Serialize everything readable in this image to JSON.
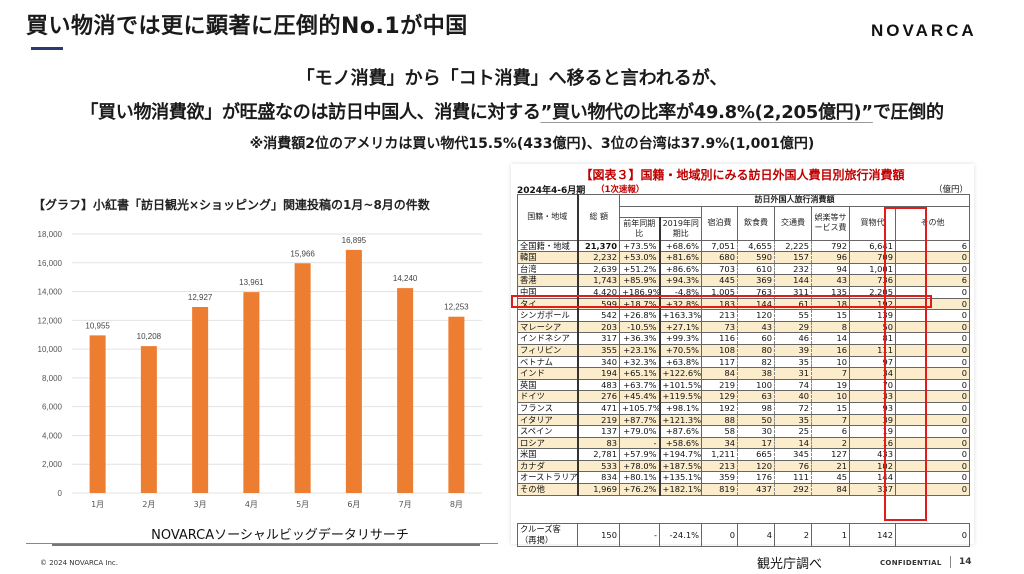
{
  "header": {
    "title": "買い物消では更に顕著に圧倒的No.1が中国",
    "logo": "NOVARCA",
    "accent_color": "#2c3a6b"
  },
  "lead": {
    "line1": "「モノ消費」から「コト消費」へ移ると言われるが、",
    "line2_a": "「買い物消費欲」が旺盛なのは訪日中国人、消費に対する",
    "line2_b": "”買い物代の比率が49.8%(2,205億円)”",
    "line2_c": "で圧倒的",
    "line3": "※消費額2位のアメリカは買い物代15.5%(433億円)、3位の台湾は37.9%(1,001億円)"
  },
  "chart_data": {
    "type": "bar",
    "title": "【グラフ】小紅書「訪日観光×ショッピング」関連投稿の1月~8月の件数",
    "categories": [
      "1月",
      "2月",
      "3月",
      "4月",
      "5月",
      "6月",
      "7月",
      "8月"
    ],
    "values": [
      10955,
      10208,
      12927,
      13961,
      15966,
      16895,
      14240,
      12253
    ],
    "value_labels": [
      "10,955",
      "10,208",
      "12,927",
      "13,961",
      "15,966",
      "16,895",
      "14,240",
      "12,253"
    ],
    "xlabel": "",
    "ylabel": "",
    "ylim": [
      0,
      18000
    ],
    "yticks": [
      0,
      2000,
      4000,
      6000,
      8000,
      10000,
      12000,
      14000,
      16000,
      18000
    ],
    "ytick_labels": [
      "0",
      "2,000",
      "4,000",
      "6,000",
      "8,000",
      "10,000",
      "12,000",
      "14,000",
      "16,000",
      "18,000"
    ],
    "grid": true,
    "bar_color": "#ed7d31",
    "source": "NOVARCAソーシャルビッグデータリサーチ"
  },
  "table": {
    "heading": "【図表３】国籍・地域別にみる訪日外国人費目別旅行消費額",
    "period": "2024年4-6月期",
    "prelim": "（1次速報）",
    "unit": "（億円）",
    "headers": {
      "region": "国籍・地域",
      "total": "総 額",
      "group": "訪日外国人旅行消費額",
      "yoy": "前年同期比",
      "vs2019": "2019年同期比",
      "lodging": "宿泊費",
      "food": "飲食費",
      "transport": "交通費",
      "entertainment": "娯楽等サービス費",
      "shopping": "買物代",
      "other": "その他"
    },
    "rows": [
      {
        "name": "全国籍・地域",
        "total": "21,370",
        "yoy": "+73.5%",
        "vs2019": "+68.6%",
        "lodging": "7,051",
        "food": "4,655",
        "transport": "2,225",
        "ent": "792",
        "shop": "6,641",
        "other": "6"
      },
      {
        "name": "韓国",
        "total": "2,232",
        "yoy": "+53.0%",
        "vs2019": "+81.6%",
        "lodging": "680",
        "food": "590",
        "transport": "157",
        "ent": "96",
        "shop": "709",
        "other": "0"
      },
      {
        "name": "台湾",
        "total": "2,639",
        "yoy": "+51.2%",
        "vs2019": "+86.6%",
        "lodging": "703",
        "food": "610",
        "transport": "232",
        "ent": "94",
        "shop": "1,001",
        "other": "0"
      },
      {
        "name": "香港",
        "total": "1,743",
        "yoy": "+85.9%",
        "vs2019": "+94.3%",
        "lodging": "445",
        "food": "369",
        "transport": "144",
        "ent": "43",
        "shop": "736",
        "other": "6"
      },
      {
        "name": "中国",
        "total": "4,420",
        "yoy": "+186.9%",
        "vs2019": "-4.8%",
        "lodging": "1,005",
        "food": "763",
        "transport": "311",
        "ent": "135",
        "shop": "2,205",
        "other": "0"
      },
      {
        "name": "タイ",
        "total": "599",
        "yoy": "+18.7%",
        "vs2019": "+32.8%",
        "lodging": "183",
        "food": "144",
        "transport": "61",
        "ent": "18",
        "shop": "192",
        "other": "0"
      },
      {
        "name": "シンガポール",
        "total": "542",
        "yoy": "+26.8%",
        "vs2019": "+163.3%",
        "lodging": "213",
        "food": "120",
        "transport": "55",
        "ent": "15",
        "shop": "139",
        "other": "0"
      },
      {
        "name": "マレーシア",
        "total": "203",
        "yoy": "-10.5%",
        "vs2019": "+27.1%",
        "lodging": "73",
        "food": "43",
        "transport": "29",
        "ent": "8",
        "shop": "50",
        "other": "0"
      },
      {
        "name": "インドネシア",
        "total": "317",
        "yoy": "+36.3%",
        "vs2019": "+99.3%",
        "lodging": "116",
        "food": "60",
        "transport": "46",
        "ent": "14",
        "shop": "81",
        "other": "0"
      },
      {
        "name": "フィリピン",
        "total": "355",
        "yoy": "+23.1%",
        "vs2019": "+70.5%",
        "lodging": "108",
        "food": "80",
        "transport": "39",
        "ent": "16",
        "shop": "111",
        "other": "0"
      },
      {
        "name": "ベトナム",
        "total": "340",
        "yoy": "+32.3%",
        "vs2019": "+63.8%",
        "lodging": "117",
        "food": "82",
        "transport": "35",
        "ent": "10",
        "shop": "97",
        "other": "0"
      },
      {
        "name": "インド",
        "total": "194",
        "yoy": "+65.1%",
        "vs2019": "+122.6%",
        "lodging": "84",
        "food": "38",
        "transport": "31",
        "ent": "7",
        "shop": "34",
        "other": "0"
      },
      {
        "name": "英国",
        "total": "483",
        "yoy": "+63.7%",
        "vs2019": "+101.5%",
        "lodging": "219",
        "food": "100",
        "transport": "74",
        "ent": "19",
        "shop": "70",
        "other": "0"
      },
      {
        "name": "ドイツ",
        "total": "276",
        "yoy": "+45.4%",
        "vs2019": "+119.5%",
        "lodging": "129",
        "food": "63",
        "transport": "40",
        "ent": "10",
        "shop": "33",
        "other": "0"
      },
      {
        "name": "フランス",
        "total": "471",
        "yoy": "+105.7%",
        "vs2019": "+98.1%",
        "lodging": "192",
        "food": "98",
        "transport": "72",
        "ent": "15",
        "shop": "93",
        "other": "0"
      },
      {
        "name": "イタリア",
        "total": "219",
        "yoy": "+87.7%",
        "vs2019": "+121.3%",
        "lodging": "88",
        "food": "50",
        "transport": "35",
        "ent": "7",
        "shop": "39",
        "other": "0"
      },
      {
        "name": "スペイン",
        "total": "137",
        "yoy": "+79.0%",
        "vs2019": "+87.6%",
        "lodging": "58",
        "food": "30",
        "transport": "25",
        "ent": "6",
        "shop": "19",
        "other": "0"
      },
      {
        "name": "ロシア",
        "total": "83",
        "yoy": "-",
        "vs2019": "+58.6%",
        "lodging": "34",
        "food": "17",
        "transport": "14",
        "ent": "2",
        "shop": "16",
        "other": "0"
      },
      {
        "name": "米国",
        "total": "2,781",
        "yoy": "+57.9%",
        "vs2019": "+194.7%",
        "lodging": "1,211",
        "food": "665",
        "transport": "345",
        "ent": "127",
        "shop": "433",
        "other": "0"
      },
      {
        "name": "カナダ",
        "total": "533",
        "yoy": "+78.0%",
        "vs2019": "+187.5%",
        "lodging": "213",
        "food": "120",
        "transport": "76",
        "ent": "21",
        "shop": "102",
        "other": "0"
      },
      {
        "name": "オーストラリア",
        "total": "834",
        "yoy": "+80.1%",
        "vs2019": "+135.1%",
        "lodging": "359",
        "food": "176",
        "transport": "111",
        "ent": "45",
        "shop": "144",
        "other": "0"
      },
      {
        "name": "その他",
        "total": "1,969",
        "yoy": "+76.2%",
        "vs2019": "+182.1%",
        "lodging": "819",
        "food": "437",
        "transport": "292",
        "ent": "84",
        "shop": "337",
        "other": "0"
      }
    ],
    "cruise": {
      "name": "クルーズ客（再掲）",
      "total": "150",
      "yoy": "-",
      "vs2019": "-24.1%",
      "lodging": "0",
      "food": "4",
      "transport": "2",
      "ent": "1",
      "shop": "142",
      "other": "0"
    },
    "highlight_color": "#e31b1b",
    "shade_color": "#fbeccb"
  },
  "footer": {
    "copyright": "© 2024 NOVARCA Inc.",
    "source": "観光庁調べ",
    "confidential": "CONFIDENTIAL",
    "page": "14"
  }
}
